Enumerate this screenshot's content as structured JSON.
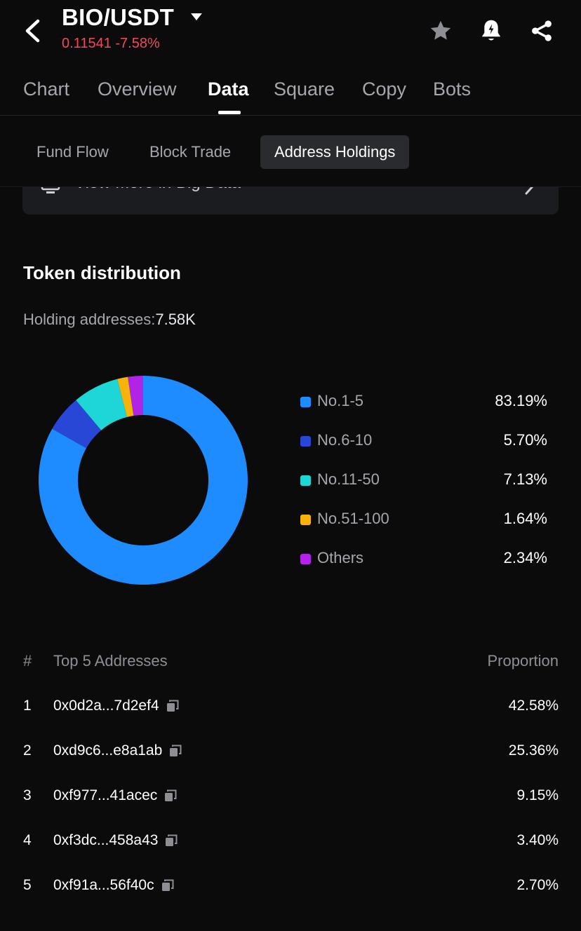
{
  "header": {
    "pair": "BIO/USDT",
    "price": "0.11541",
    "change": "-7.58%"
  },
  "tabs": [
    {
      "label": "Chart",
      "active": false
    },
    {
      "label": "Overview",
      "active": false
    },
    {
      "label": "Data",
      "active": true
    },
    {
      "label": "Square",
      "active": false
    },
    {
      "label": "Copy",
      "active": false
    },
    {
      "label": "Bots",
      "active": false
    }
  ],
  "subtabs": [
    {
      "label": "Fund Flow",
      "active": false
    },
    {
      "label": "Block Trade",
      "active": false
    },
    {
      "label": "Address Holdings",
      "active": true
    }
  ],
  "view_more": {
    "label": "View More in Big Data"
  },
  "distribution": {
    "title": "Token distribution",
    "holding_label": "Holding addresses:",
    "holding_value": "7.58K",
    "legend": [
      {
        "label": "No.1-5",
        "value": "83.19%",
        "color": "#1e8bff"
      },
      {
        "label": "No.6-10",
        "value": "5.70%",
        "color": "#2947d6"
      },
      {
        "label": "No.11-50",
        "value": "7.13%",
        "color": "#1fd6d6"
      },
      {
        "label": "No.51-100",
        "value": "1.64%",
        "color": "#f6b40a"
      },
      {
        "label": "Others",
        "value": "2.34%",
        "color": "#b223e8"
      }
    ]
  },
  "chart_data": {
    "type": "pie",
    "categories": [
      "No.1-5",
      "No.6-10",
      "No.11-50",
      "No.51-100",
      "Others"
    ],
    "values": [
      83.19,
      5.7,
      7.13,
      1.64,
      2.34
    ],
    "colors": [
      "#1e8bff",
      "#2947d6",
      "#1fd6d6",
      "#f6b40a",
      "#b223e8"
    ],
    "title": "Token distribution",
    "legend": "right"
  },
  "top_addresses": {
    "col_rank": "#",
    "col_address": "Top 5 Addresses",
    "col_proportion": "Proportion",
    "rows": [
      {
        "rank": "1",
        "address": "0x0d2a...7d2ef4",
        "proportion": "42.58%"
      },
      {
        "rank": "2",
        "address": "0xd9c6...e8a1ab",
        "proportion": "25.36%"
      },
      {
        "rank": "3",
        "address": "0xf977...41acec",
        "proportion": "9.15%"
      },
      {
        "rank": "4",
        "address": "0xf3dc...458a43",
        "proportion": "3.40%"
      },
      {
        "rank": "5",
        "address": "0xf91a...56f40c",
        "proportion": "2.70%"
      }
    ]
  },
  "icons": {
    "back": "back-arrow-icon",
    "caret": "caret-down-icon",
    "favorite": "star-icon",
    "alert": "bell-alert-icon",
    "share": "share-icon",
    "copy": "copy-icon"
  }
}
